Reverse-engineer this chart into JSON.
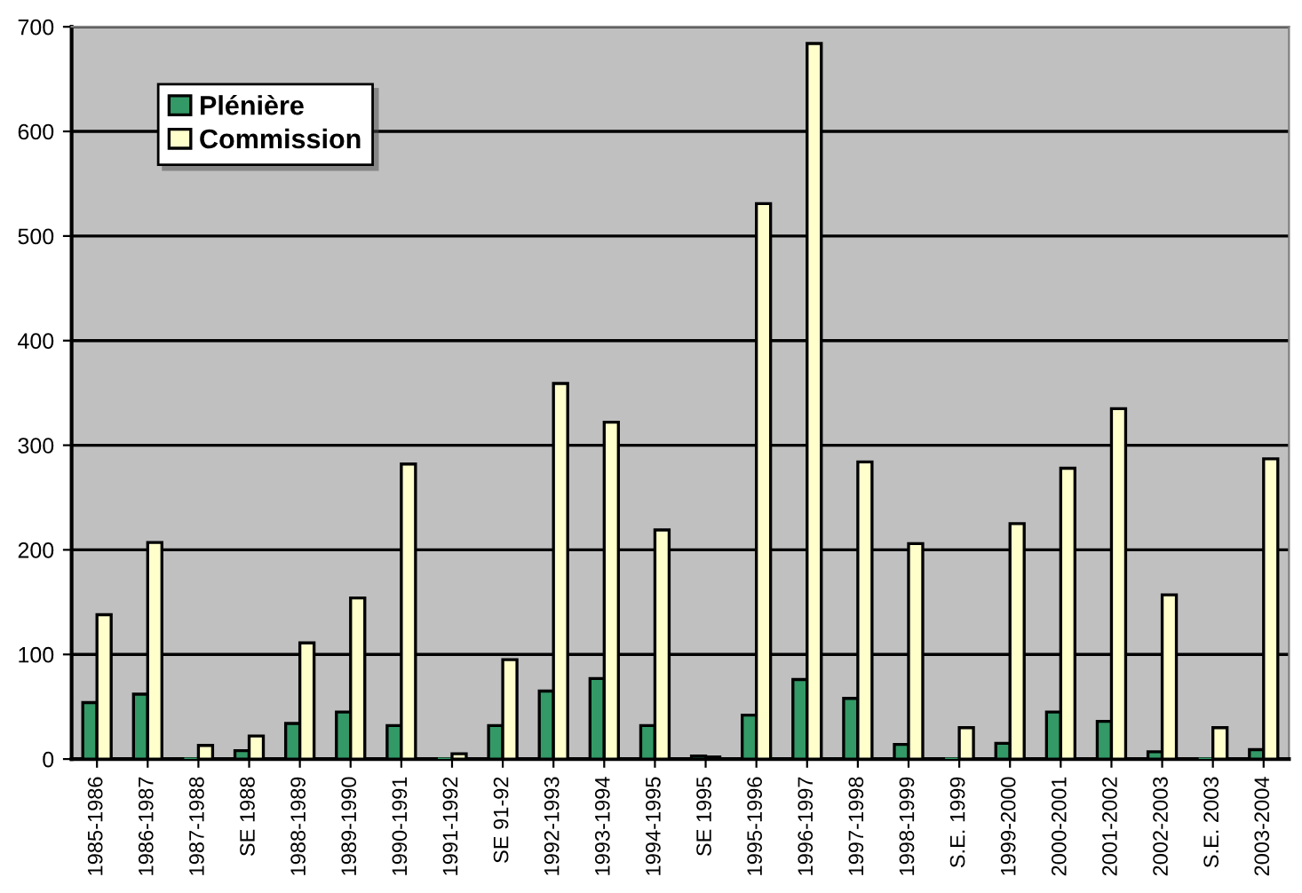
{
  "chart_data": {
    "type": "bar",
    "categories": [
      "1985-1986",
      "1986-1987",
      "1987-1988",
      "SE 1988",
      "1988-1989",
      "1989-1990",
      "1990-1991",
      "1991-1992",
      "SE 91-92",
      "1992-1993",
      "1993-1994",
      "1994-1995",
      "SE 1995",
      "1995-1996",
      "1996-1997",
      "1997-1998",
      "1998-1999",
      "S.E. 1999",
      "1999-2000",
      "2000-2001",
      "2001-2002",
      "2002-2003",
      "S.E. 2003",
      "2003-2004"
    ],
    "series": [
      {
        "name": "Plénière",
        "color": "#339966",
        "values": [
          54,
          62,
          0,
          8,
          34,
          45,
          32,
          0,
          32,
          65,
          77,
          32,
          3,
          42,
          76,
          58,
          14,
          0,
          15,
          45,
          36,
          7,
          0,
          9
        ]
      },
      {
        "name": "Commission",
        "color": "#ffffcc",
        "values": [
          138,
          207,
          13,
          22,
          111,
          154,
          282,
          5,
          95,
          359,
          322,
          219,
          2,
          531,
          684,
          284,
          206,
          30,
          225,
          278,
          335,
          157,
          30,
          287
        ]
      }
    ],
    "ylim": [
      0,
      700
    ],
    "yticks": [
      0,
      100,
      200,
      300,
      400,
      500,
      600,
      700
    ],
    "grid": "y",
    "legend": "top left"
  }
}
